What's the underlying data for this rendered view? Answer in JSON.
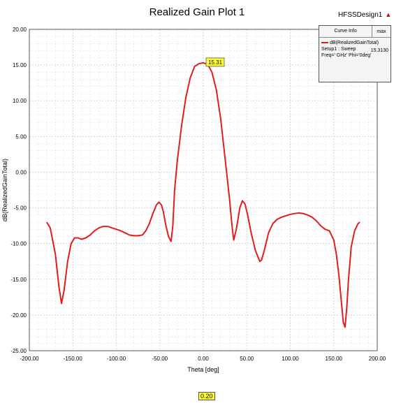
{
  "header": {
    "title": "Realized Gain Plot 1",
    "design_name": "HFSSDesign1",
    "design_marker": "▲"
  },
  "legend": {
    "col_curve_info": "Curve Info",
    "col_max": "max",
    "series_name": "dB(RealizedGainTotal)",
    "setup": "Setup1 : Sweep",
    "params": "Freq='    GHz' Phi='0deg'",
    "max_value": "15.3130"
  },
  "marker": {
    "peak_label": "15.31",
    "x_marker_label": "0.20"
  },
  "colors": {
    "series": "#e41c1c",
    "grid": "#d0d0d0",
    "marker_bg": "#ffff33"
  },
  "chart_data": {
    "type": "line",
    "title": "Realized Gain Plot 1",
    "xlabel": "Theta [deg]",
    "ylabel": "dB(RealizedGainTotal)",
    "xlim": [
      -200,
      200
    ],
    "ylim": [
      -25,
      20
    ],
    "xticks": [
      "-200.00",
      "-150.00",
      "-100.00",
      "-50.00",
      "0.00",
      "50.00",
      "100.00",
      "150.00",
      "200.00"
    ],
    "yticks": [
      "20.00",
      "15.00",
      "10.00",
      "5.00",
      "0.00",
      "-5.00",
      "-10.00",
      "-15.00",
      "-20.00",
      "-25.00"
    ],
    "grid": true,
    "series": [
      {
        "name": "dB(RealizedGainTotal)",
        "x": [
          -180,
          -176,
          -170,
          -166,
          -163,
          -160,
          -156,
          -152,
          -148,
          -144,
          -140,
          -135,
          -130,
          -125,
          -120,
          -115,
          -110,
          -105,
          -100,
          -95,
          -90,
          -85,
          -80,
          -75,
          -70,
          -66,
          -62,
          -58,
          -54,
          -51,
          -48,
          -46,
          -43,
          -40,
          -37,
          -35,
          -33,
          -30,
          -25,
          -20,
          -15,
          -10,
          -5,
          0,
          5,
          10,
          15,
          20,
          25,
          30,
          33,
          35,
          38,
          42,
          45,
          48,
          51,
          55,
          60,
          65,
          67,
          70,
          75,
          80,
          85,
          90,
          95,
          100,
          105,
          110,
          115,
          120,
          125,
          130,
          135,
          140,
          145,
          150,
          153,
          156,
          159,
          161,
          163,
          165,
          167,
          170,
          174,
          178,
          180
        ],
        "y": [
          -7.0,
          -7.8,
          -11.5,
          -16.0,
          -18.4,
          -16.5,
          -12.5,
          -10.0,
          -9.2,
          -9.2,
          -9.4,
          -9.2,
          -8.8,
          -8.2,
          -7.8,
          -7.6,
          -7.6,
          -7.8,
          -8.0,
          -8.2,
          -8.5,
          -8.8,
          -8.9,
          -8.9,
          -8.8,
          -8.2,
          -7.2,
          -5.8,
          -4.6,
          -4.2,
          -4.6,
          -5.5,
          -7.5,
          -9.0,
          -9.7,
          -7.5,
          -2.5,
          1.5,
          6.5,
          10.5,
          13.2,
          14.8,
          15.2,
          15.31,
          15.1,
          14.0,
          11.5,
          7.5,
          2.0,
          -3.5,
          -7.5,
          -9.5,
          -8.0,
          -5.0,
          -4.0,
          -4.5,
          -6.0,
          -8.5,
          -11.0,
          -12.5,
          -12.3,
          -11.0,
          -8.5,
          -7.2,
          -6.6,
          -6.3,
          -6.1,
          -5.9,
          -5.8,
          -5.7,
          -5.8,
          -6.0,
          -6.3,
          -6.8,
          -7.5,
          -8.0,
          -8.2,
          -9.5,
          -11.5,
          -14.5,
          -18.5,
          -21.0,
          -21.7,
          -19.0,
          -15.0,
          -10.5,
          -8.2,
          -7.2,
          -7.0
        ]
      }
    ],
    "peak": {
      "x": 0,
      "y": 15.31
    }
  }
}
